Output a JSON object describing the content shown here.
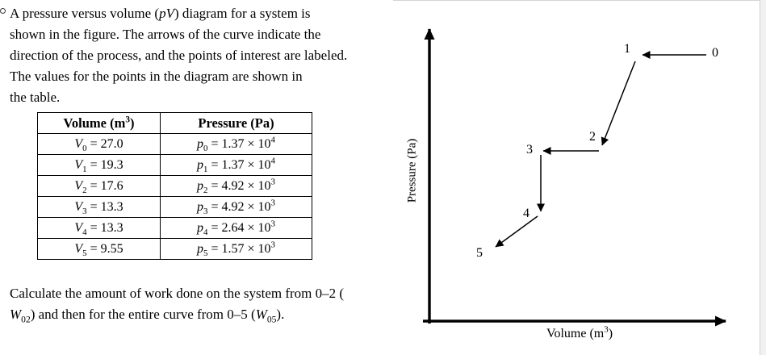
{
  "problem": {
    "statement_html": "A pressure versus volume (<i>pV</i>) diagram for a system is<br>shown in the figure. The arrows of the curve indicate the<br>direction of the process, and the points of interest are labeled.<br>The values for the points in the diagram are shown in<br>the table.",
    "question_html": "Calculate the amount of work done on the system from 0–2 (<br><i>W</i><sub>02</sub>) and then for the entire curve from 0–5 (<i>W</i><sub>05</sub>)."
  },
  "table": {
    "headers_html": [
      "Volume (m<sup>3</sup>)",
      "Pressure (Pa)"
    ],
    "rows_html": [
      [
        "<i>V</i><sub>0</sub> = 27.0",
        "<i>p</i><sub>0</sub> = 1.37 × 10<sup>4</sup>"
      ],
      [
        "<i>V</i><sub>1</sub> = 19.3",
        "<i>p</i><sub>1</sub> = 1.37 × 10<sup>4</sup>"
      ],
      [
        "<i>V</i><sub>2</sub> = 17.6",
        "<i>p</i><sub>2</sub> = 4.92 × 10<sup>3</sup>"
      ],
      [
        "<i>V</i><sub>3</sub> = 13.3",
        "<i>p</i><sub>3</sub> = 4.92 × 10<sup>3</sup>"
      ],
      [
        "<i>V</i><sub>4</sub> = 13.3",
        "<i>p</i><sub>4</sub> = 2.64 × 10<sup>3</sup>"
      ],
      [
        "<i>V</i><sub>5</sub> = 9.55",
        "<i>p</i><sub>5</sub> = 1.57 × 10<sup>3</sup>"
      ]
    ]
  },
  "diagram": {
    "ylabel_html": "Pressure (Pa)",
    "xlabel_html": "Volume (m<sup>3</sup>)",
    "point_labels": [
      "0",
      "1",
      "2",
      "3",
      "4",
      "5"
    ]
  },
  "chart_data": {
    "type": "line",
    "xlabel": "Volume (m³)",
    "ylabel": "Pressure (Pa)",
    "points": [
      {
        "label": "0",
        "volume_m3": 27.0,
        "pressure_Pa": 13700
      },
      {
        "label": "1",
        "volume_m3": 19.3,
        "pressure_Pa": 13700
      },
      {
        "label": "2",
        "volume_m3": 17.6,
        "pressure_Pa": 4920
      },
      {
        "label": "3",
        "volume_m3": 13.3,
        "pressure_Pa": 4920
      },
      {
        "label": "4",
        "volume_m3": 13.3,
        "pressure_Pa": 2640
      },
      {
        "label": "5",
        "volume_m3": 9.55,
        "pressure_Pa": 1570
      }
    ],
    "process_order": [
      "0",
      "1",
      "2",
      "3",
      "4",
      "5"
    ],
    "arrows": "arrowheads on each segment pointing in direction of process 0→1→2→3→4→5",
    "axis_ticks": "none"
  }
}
